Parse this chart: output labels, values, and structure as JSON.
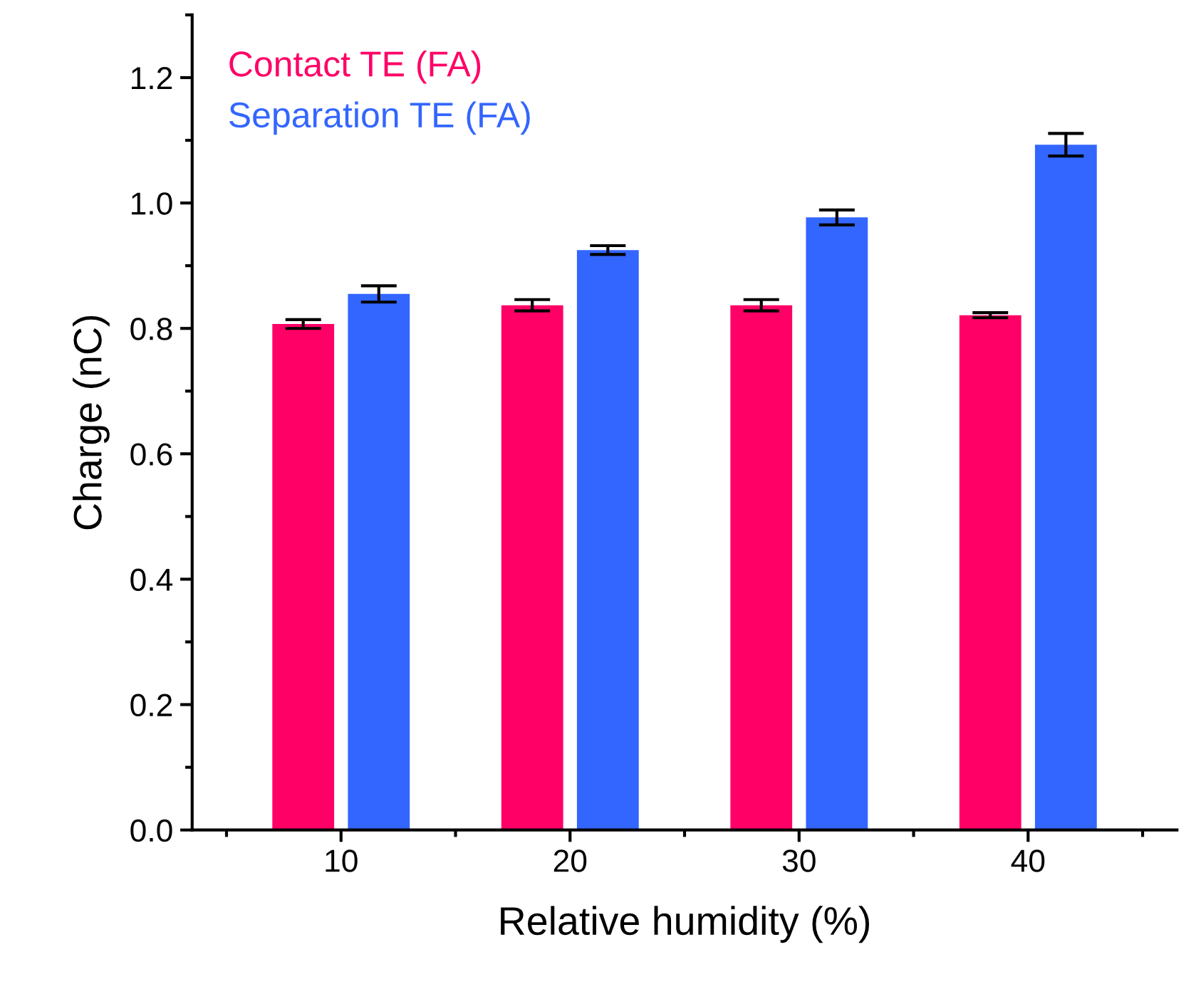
{
  "chart_data": {
    "type": "bar",
    "xlabel": "Relative humidity (%)",
    "ylabel": "Charge (nC)",
    "categories": [
      "10",
      "20",
      "30",
      "40"
    ],
    "series": [
      {
        "name": "Contact TE (FA)",
        "color": "#ff0066",
        "values": [
          0.807,
          0.837,
          0.837,
          0.821
        ],
        "errors": [
          0.007,
          0.009,
          0.009,
          0.004
        ]
      },
      {
        "name": "Separation TE (FA)",
        "color": "#3366ff",
        "values": [
          0.855,
          0.925,
          0.977,
          1.093
        ],
        "errors": [
          0.013,
          0.007,
          0.012,
          0.018
        ]
      }
    ],
    "ylim": [
      0,
      1.3
    ],
    "yticks": [
      {
        "value": 0,
        "label": "0.0"
      },
      0.2,
      0.4,
      0.6,
      0.8,
      {
        "value": 1,
        "label": "1.0"
      },
      1.2
    ],
    "legend": "top left",
    "grid": false
  }
}
